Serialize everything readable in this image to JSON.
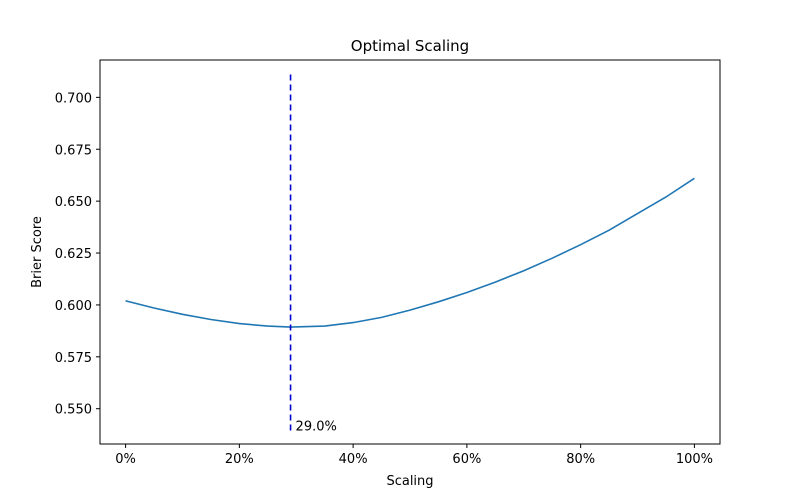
{
  "chart_data": {
    "type": "line",
    "title": "Optimal Scaling",
    "xlabel": "Scaling",
    "ylabel": "Brier Score",
    "xlim": [
      -0.045,
      1.045
    ],
    "ylim": [
      0.533,
      0.718
    ],
    "x_ticks": [
      0,
      0.2,
      0.4,
      0.6,
      0.8,
      1.0
    ],
    "x_tick_labels": [
      "0%",
      "20%",
      "40%",
      "60%",
      "80%",
      "100%"
    ],
    "y_ticks": [
      0.55,
      0.575,
      0.6,
      0.625,
      0.65,
      0.675,
      0.7
    ],
    "y_tick_labels": [
      "0.550",
      "0.575",
      "0.600",
      "0.625",
      "0.650",
      "0.675",
      "0.700"
    ],
    "grid": false,
    "legend": "none",
    "series": [
      {
        "color": "#1f77b4",
        "x": [
          0.0,
          0.05,
          0.1,
          0.15,
          0.2,
          0.25,
          0.29,
          0.35,
          0.4,
          0.45,
          0.5,
          0.55,
          0.6,
          0.65,
          0.7,
          0.75,
          0.8,
          0.85,
          0.9,
          0.95,
          1.0
        ],
        "y": [
          0.602,
          0.5985,
          0.5955,
          0.593,
          0.591,
          0.5898,
          0.5893,
          0.5898,
          0.5915,
          0.594,
          0.5975,
          0.6015,
          0.606,
          0.611,
          0.6165,
          0.6225,
          0.629,
          0.636,
          0.644,
          0.652,
          0.661
        ]
      }
    ],
    "annotations": [
      {
        "type": "vline",
        "x": 0.29,
        "y_from": 0.539,
        "y_to": 0.711,
        "color": "#0000cc",
        "style": "dashed",
        "label": "29.0%",
        "label_color": "#0000ff"
      }
    ]
  }
}
